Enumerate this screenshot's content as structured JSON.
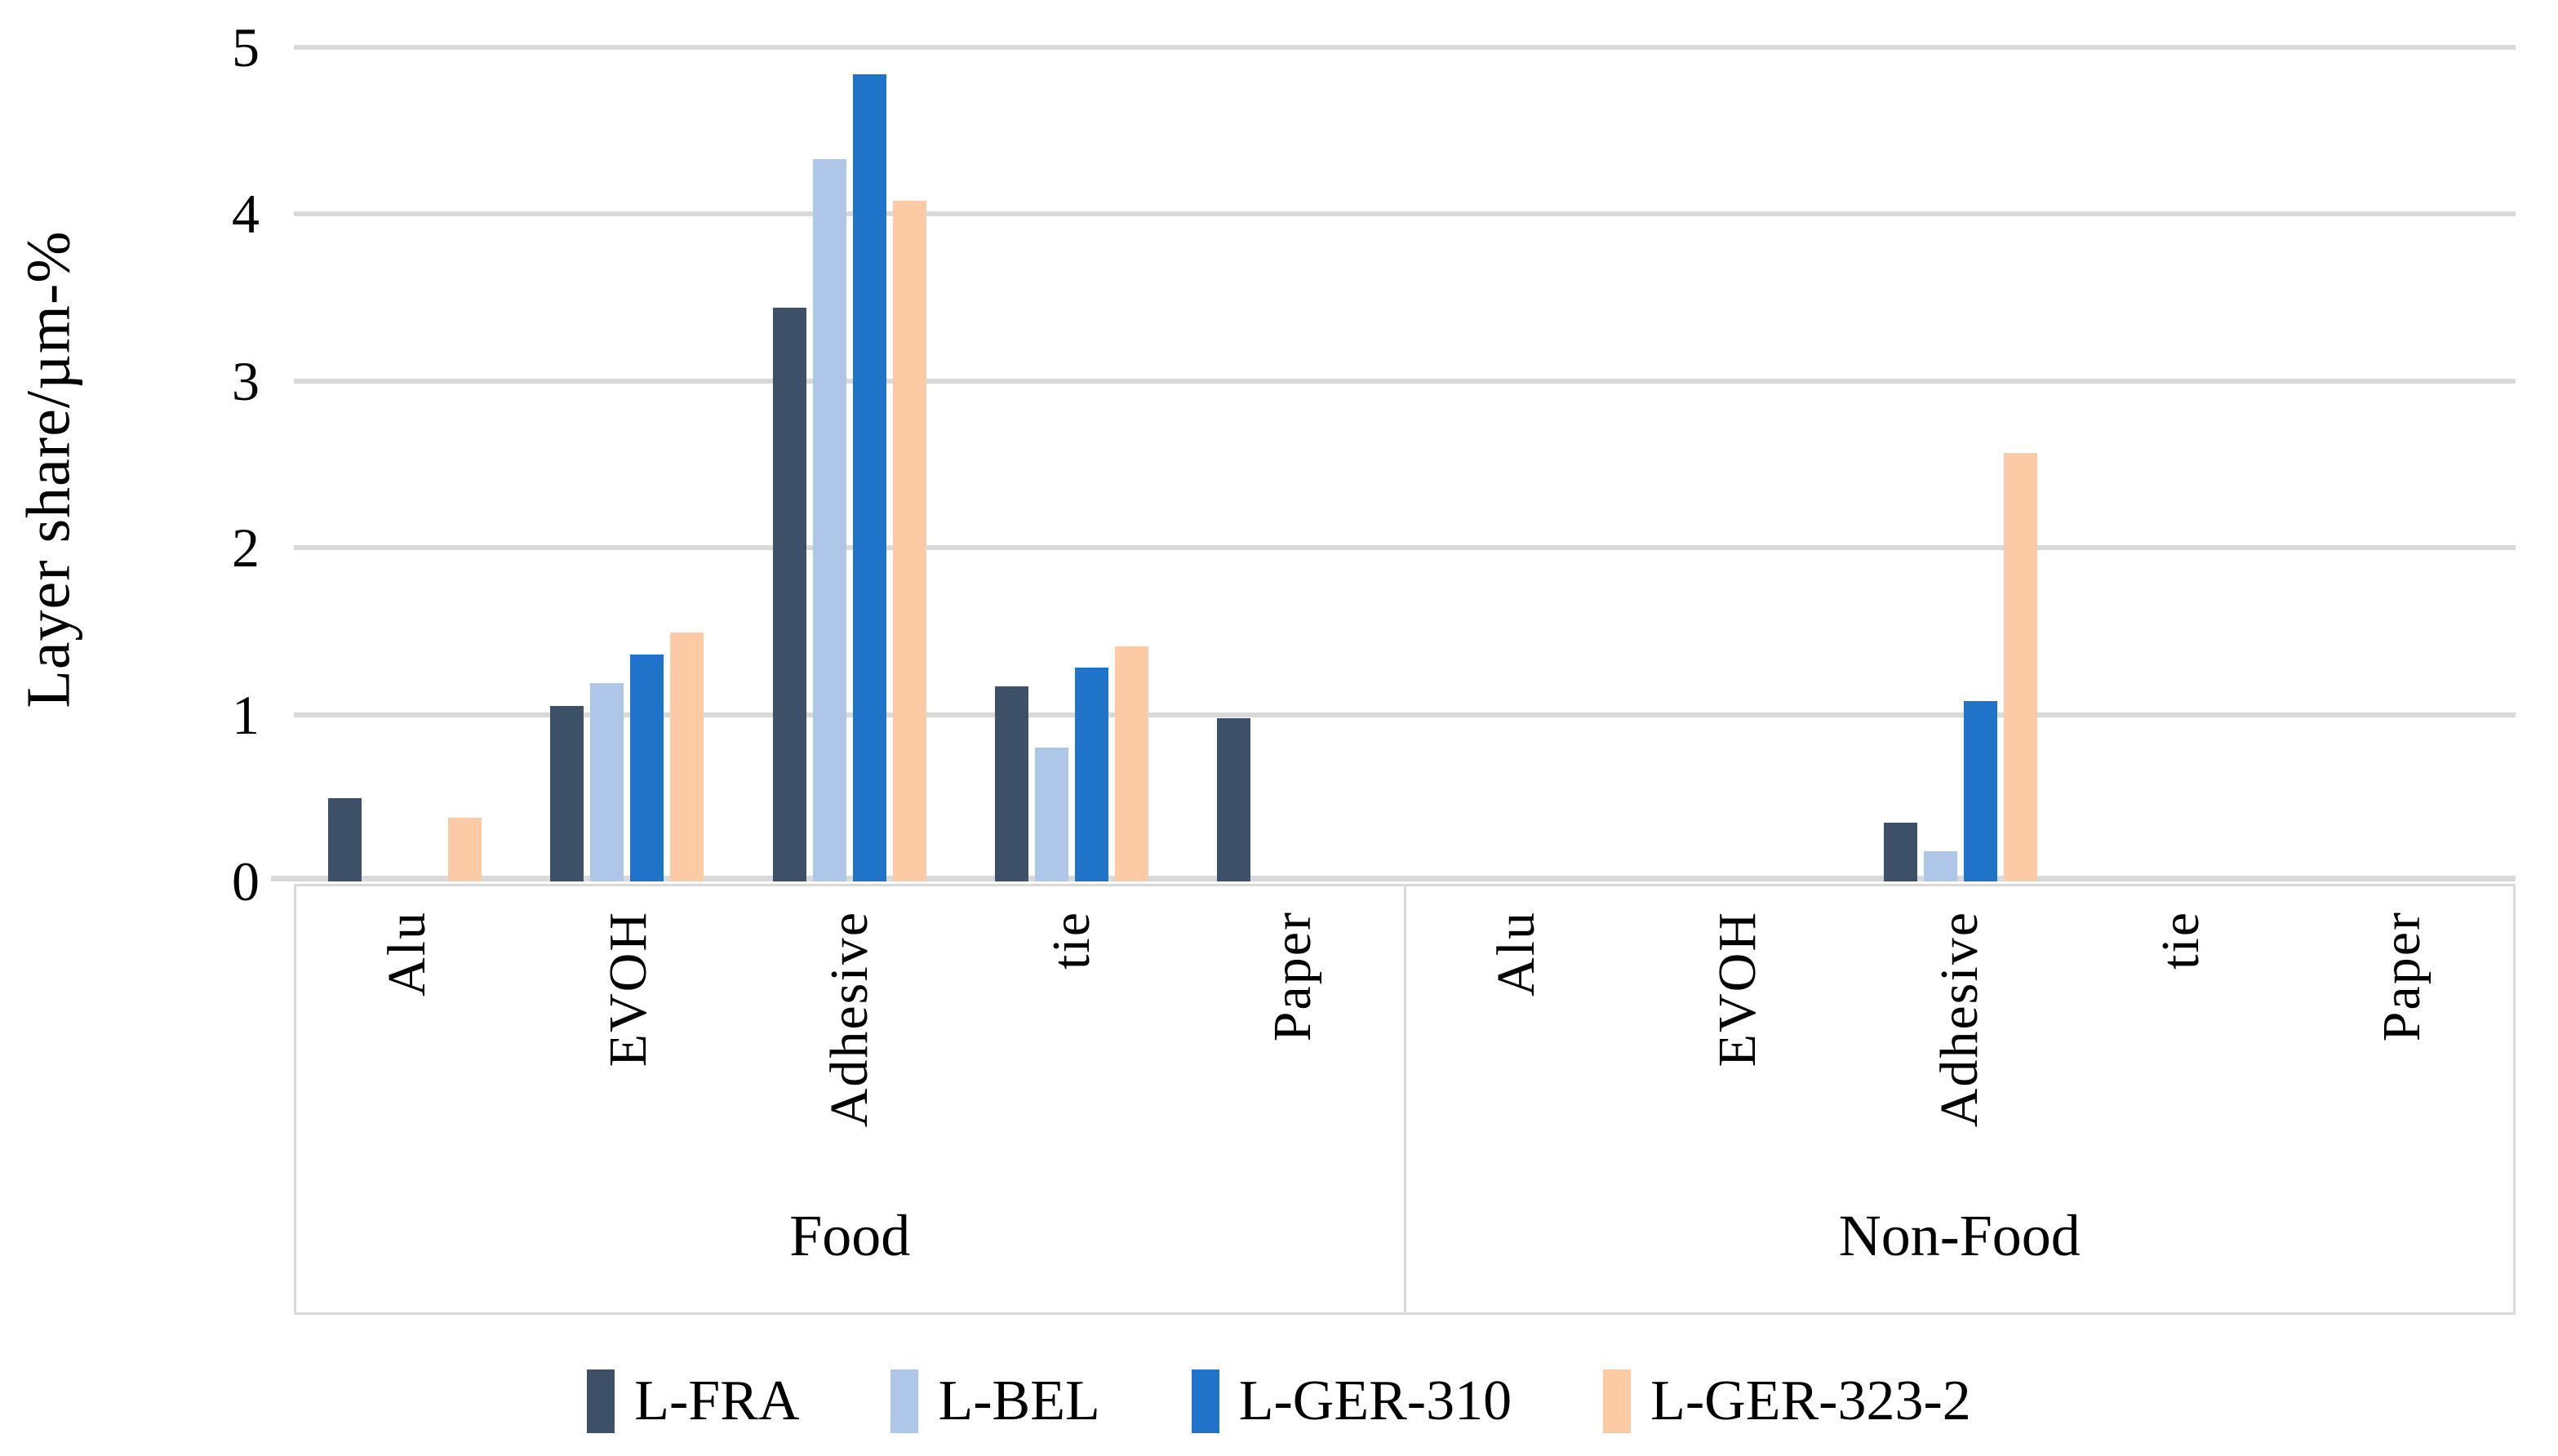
{
  "figure": {
    "ylabel": "Layer share/µm-%"
  },
  "colors": {
    "grid": "#D9D9D9",
    "text": "#000000"
  },
  "chart_data": {
    "type": "bar",
    "title": "",
    "xlabel": "",
    "ylabel": "Layer share/µm-%",
    "ylim": [
      0,
      5
    ],
    "yticks": [
      0,
      1,
      2,
      3,
      4,
      5
    ],
    "grid": true,
    "legend_position": "bottom",
    "groups": [
      "Food",
      "Non-Food"
    ],
    "categories": [
      "Alu",
      "EVOH",
      "Adhesive",
      "tie",
      "Paper"
    ],
    "series": [
      {
        "name": "L-FRA",
        "color": "#3C5167",
        "values": {
          "Food": [
            0.5,
            1.05,
            3.44,
            1.17,
            0.98
          ],
          "Non-Food": [
            0,
            0,
            0.35,
            0,
            0
          ]
        }
      },
      {
        "name": "L-BEL",
        "color": "#AEC7E8",
        "values": {
          "Food": [
            0,
            1.19,
            4.33,
            0.8,
            0
          ],
          "Non-Food": [
            0,
            0,
            0.18,
            0,
            0
          ]
        }
      },
      {
        "name": "L-GER-310",
        "color": "#1F73C9",
        "values": {
          "Food": [
            0,
            1.36,
            4.84,
            1.28,
            0
          ],
          "Non-Food": [
            0,
            0,
            1.08,
            0,
            0
          ]
        }
      },
      {
        "name": "L-GER-323-2",
        "color": "#FCCBA6",
        "values": {
          "Food": [
            0.38,
            1.49,
            4.08,
            1.41,
            0
          ],
          "Non-Food": [
            0,
            0,
            2.57,
            0,
            0
          ]
        }
      }
    ]
  }
}
